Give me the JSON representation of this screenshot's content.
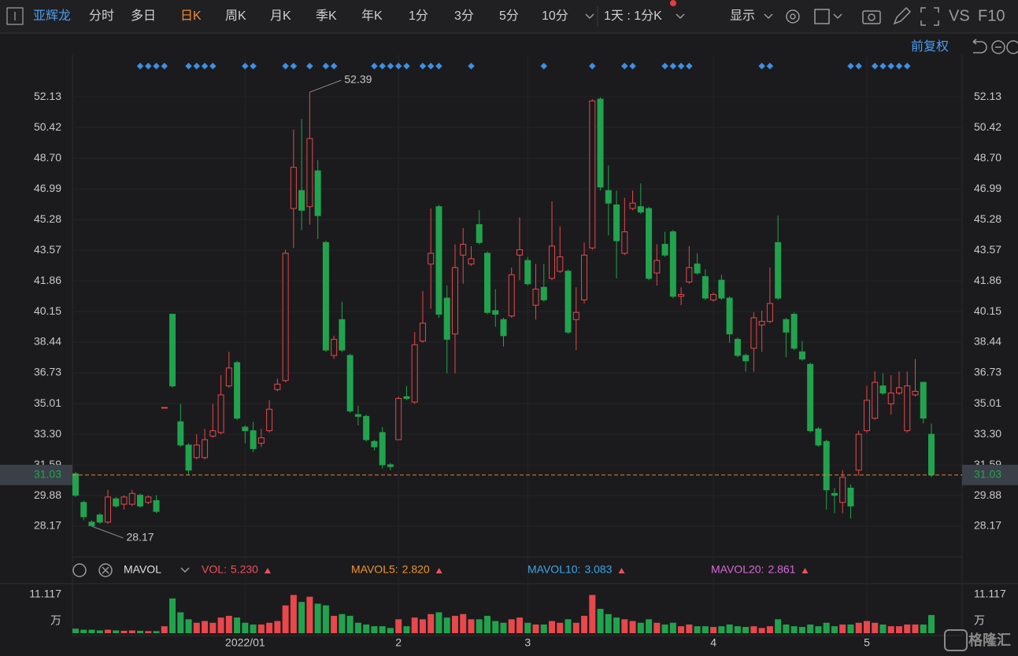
{
  "toolbar": {
    "stock": "亚辉龙",
    "tabs": [
      "分时",
      "多日",
      "日K",
      "周K",
      "月K",
      "季K",
      "年K",
      "1分",
      "3分",
      "5分",
      "10分"
    ],
    "active_tab_index": 2,
    "period": "1天 : 1分K",
    "display": "显示",
    "vs": "VS",
    "f10": "F10",
    "adjust": "前复权"
  },
  "chart_data": {
    "type": "candlestick",
    "categories": [
      null,
      null,
      null,
      null,
      null,
      null,
      null,
      null,
      null,
      null,
      null,
      null,
      null,
      null,
      null,
      null,
      null,
      null,
      null,
      null,
      null,
      "2022/01",
      null,
      null,
      null,
      null,
      null,
      null,
      null,
      null,
      null,
      null,
      null,
      null,
      null,
      null,
      null,
      null,
      null,
      null,
      "2",
      null,
      null,
      null,
      null,
      null,
      null,
      null,
      null,
      null,
      null,
      null,
      null,
      null,
      null,
      null,
      "3",
      null,
      null,
      null,
      null,
      null,
      null,
      null,
      null,
      null,
      null,
      null,
      null,
      null,
      null,
      null,
      null,
      null,
      null,
      null,
      null,
      null,
      null,
      "4",
      null,
      null,
      null,
      null,
      null,
      null,
      null,
      null,
      null,
      null,
      null,
      null,
      null,
      null,
      null,
      null,
      null,
      null,
      "5",
      null,
      null,
      null,
      null,
      null,
      null,
      null,
      null
    ],
    "open": [
      31.1,
      29.5,
      28.4,
      28.8,
      28.4,
      29.7,
      29.4,
      29.4,
      29.9,
      29.5,
      29.6,
      34.8,
      40.0,
      34.0,
      32.7,
      32.0,
      32.0,
      33.2,
      33.4,
      36.0,
      37.3,
      33.7,
      33.5,
      32.8,
      33.5,
      35.8,
      36.3,
      45.9,
      46.9,
      46.0,
      48.0,
      44.0,
      37.7,
      39.7,
      37.7,
      34.4,
      34.3,
      32.9,
      33.4,
      31.6,
      33.0,
      35.4,
      35.1,
      38.5,
      42.8,
      46.0,
      40.9,
      38.9,
      43.3,
      42.8,
      45.0,
      43.4,
      40.2,
      39.7,
      39.9,
      43.3,
      43.0,
      40.5,
      41.5,
      42.0,
      42.4,
      42.4,
      39.7,
      40.8,
      43.7,
      52.0,
      46.9,
      46.1,
      43.4,
      45.9,
      46.0,
      45.9,
      42.3,
      43.9,
      44.6,
      41.0,
      41.8,
      42.8,
      42.1,
      40.8,
      41.9,
      40.9,
      38.6,
      37.7,
      38.1,
      39.4,
      39.6,
      44.0,
      39.7,
      40.0,
      37.9,
      37.2,
      33.6,
      32.9,
      30.0,
      29.5,
      30.3,
      31.3,
      33.5,
      34.2,
      36.0,
      35.0,
      35.6,
      33.5,
      35.5,
      36.2,
      33.3
    ],
    "high": [
      31.2,
      29.6,
      28.5,
      28.9,
      30.2,
      29.8,
      29.9,
      30.2,
      30.0,
      29.9,
      29.9,
      34.8,
      40.0,
      35.0,
      32.8,
      33.3,
      33.6,
      35.0,
      36.6,
      37.9,
      37.4,
      33.8,
      34.0,
      33.6,
      35.2,
      36.4,
      43.6,
      50.3,
      50.9,
      52.39,
      48.6,
      44.1,
      38.8,
      40.7,
      37.8,
      34.9,
      34.4,
      33.0,
      33.7,
      31.7,
      35.4,
      36.0,
      39.0,
      41.3,
      45.9,
      46.1,
      41.6,
      43.9,
      44.8,
      43.8,
      45.8,
      43.5,
      41.4,
      39.8,
      42.6,
      45.4,
      43.2,
      42.8,
      42.8,
      46.3,
      44.9,
      42.5,
      41.5,
      44.0,
      52.0,
      52.1,
      48.3,
      46.9,
      46.5,
      46.9,
      47.3,
      46.0,
      43.9,
      44.6,
      44.7,
      41.5,
      43.8,
      43.4,
      42.5,
      41.2,
      42.2,
      41.0,
      38.7,
      37.8,
      40.1,
      40.2,
      42.6,
      45.5,
      39.8,
      40.1,
      38.5,
      37.3,
      33.7,
      33.0,
      30.3,
      31.3,
      30.5,
      33.5,
      36.0,
      36.8,
      36.7,
      36.6,
      36.8,
      36.8,
      37.5,
      36.2,
      33.9
    ],
    "low": [
      29.8,
      28.5,
      28.17,
      28.3,
      28.3,
      29.2,
      29.1,
      29.3,
      29.2,
      29.4,
      28.9,
      34.8,
      35.9,
      32.6,
      31.0,
      31.9,
      31.9,
      33.1,
      33.3,
      35.9,
      34.1,
      32.8,
      32.3,
      32.6,
      33.4,
      35.7,
      36.2,
      43.7,
      44.7,
      45.0,
      44.2,
      37.9,
      37.5,
      37.9,
      34.5,
      33.8,
      32.9,
      32.4,
      31.4,
      31.3,
      33.0,
      35.2,
      35.0,
      38.4,
      40.3,
      39.8,
      36.7,
      36.7,
      41.7,
      42.7,
      43.9,
      40.0,
      39.3,
      38.2,
      39.8,
      41.9,
      41.6,
      39.7,
      40.7,
      41.9,
      42.3,
      38.9,
      38.0,
      40.6,
      43.6,
      46.9,
      44.4,
      42.0,
      43.3,
      45.8,
      45.6,
      41.9,
      41.6,
      43.2,
      40.9,
      40.5,
      41.7,
      42.2,
      40.8,
      40.7,
      40.8,
      38.4,
      37.6,
      36.8,
      36.8,
      37.9,
      39.5,
      40.8,
      37.6,
      38.0,
      37.4,
      33.4,
      32.6,
      29.1,
      28.9,
      28.9,
      28.6,
      31.0,
      33.4,
      34.1,
      35.5,
      34.4,
      35.5,
      33.4,
      35.4,
      33.9,
      30.9
    ],
    "close": [
      29.9,
      28.7,
      28.2,
      28.4,
      29.8,
      29.3,
      29.8,
      30.0,
      29.3,
      29.8,
      29.0,
      34.8,
      36.0,
      32.7,
      31.3,
      32.7,
      33.0,
      33.5,
      35.5,
      37.0,
      34.2,
      33.5,
      32.5,
      33.1,
      34.7,
      36.1,
      43.4,
      48.2,
      45.8,
      49.8,
      45.5,
      38.0,
      38.6,
      38.0,
      34.6,
      34.3,
      33.0,
      32.6,
      31.6,
      31.5,
      35.3,
      35.3,
      38.3,
      39.5,
      43.4,
      40.0,
      38.6,
      42.6,
      43.9,
      43.1,
      44.0,
      40.1,
      40.0,
      38.8,
      42.2,
      43.6,
      41.7,
      41.4,
      40.8,
      43.8,
      43.2,
      39.0,
      40.1,
      43.3,
      51.9,
      47.1,
      46.2,
      44.1,
      44.6,
      46.2,
      45.7,
      42.0,
      43.0,
      43.3,
      41.0,
      41.1,
      42.6,
      42.3,
      40.9,
      41.1,
      40.9,
      38.9,
      37.7,
      37.4,
      39.8,
      39.6,
      40.6,
      40.9,
      39.0,
      38.1,
      37.5,
      33.5,
      32.7,
      30.2,
      29.9,
      30.9,
      29.3,
      33.3,
      35.2,
      36.2,
      35.6,
      35.6,
      35.9,
      36.0,
      35.7,
      34.2,
      31.03
    ],
    "up_color": "#e8474c",
    "down_color": "#21a34e",
    "ylim": [
      26.46,
      54.46
    ],
    "yticks": [
      28.17,
      29.88,
      31.59,
      {
        "value": 33.3,
        "label": "33.30"
      },
      35.01,
      36.73,
      38.44,
      40.15,
      41.86,
      43.57,
      45.28,
      46.99,
      {
        "value": 48.7,
        "label": "48.70"
      },
      50.42,
      52.13
    ],
    "grid": true,
    "last_price": 31.03,
    "high_label": "52.39",
    "low_label": "28.17",
    "signals": [
      8,
      9,
      10,
      11,
      14,
      15,
      16,
      17,
      21,
      22,
      26,
      27,
      29,
      31,
      32,
      37,
      38,
      39,
      40,
      41,
      43,
      44,
      45,
      49,
      58,
      64,
      68,
      69,
      73,
      74,
      75,
      76,
      85,
      86,
      96,
      97,
      99,
      100,
      101,
      102,
      103
    ],
    "signal_color": "#3d8fe6",
    "volume": {
      "indicator": "MAVOL",
      "values": [
        1.3,
        1.0,
        1.0,
        0.8,
        1.0,
        0.8,
        0.7,
        0.8,
        0.7,
        0.6,
        0.6,
        2.0,
        10.0,
        6.0,
        4.0,
        3.0,
        3.5,
        3.0,
        4.5,
        5.0,
        4.5,
        3.0,
        2.5,
        2.5,
        3.0,
        3.5,
        8.0,
        11.0,
        9.0,
        10.5,
        8.5,
        8.0,
        5.0,
        5.5,
        5.0,
        3.0,
        2.5,
        2.0,
        2.0,
        1.5,
        4.0,
        2.0,
        4.5,
        4.0,
        5.5,
        6.0,
        4.5,
        5.0,
        5.5,
        4.0,
        4.0,
        5.0,
        3.5,
        3.0,
        4.0,
        4.5,
        3.0,
        2.5,
        2.5,
        3.5,
        3.0,
        4.0,
        3.0,
        5.0,
        11.0,
        7.0,
        5.5,
        4.5,
        4.0,
        3.5,
        3.0,
        4.0,
        3.0,
        2.5,
        3.0,
        2.0,
        2.5,
        2.0,
        2.0,
        1.8,
        2.0,
        2.5,
        2.0,
        1.8,
        2.0,
        1.5,
        2.0,
        4.0,
        2.5,
        2.0,
        1.8,
        2.5,
        2.0,
        3.0,
        2.0,
        2.5,
        2.5,
        3.0,
        3.5,
        3.0,
        2.5,
        2.0,
        2.0,
        2.5,
        2.5,
        2.5,
        5.23
      ],
      "ylim": [
        0,
        12
      ],
      "yticks": [
        11.117
      ],
      "unit": "万",
      "indicators": [
        {
          "name": "VOL:",
          "value": "5.230",
          "color": "#f0505a"
        },
        {
          "name": "MAVOL5:",
          "value": "2.820",
          "color": "#f0952e"
        },
        {
          "name": "MAVOL10:",
          "value": "3.083",
          "color": "#3aa6e8"
        },
        {
          "name": "MAVOL20:",
          "value": "2.861",
          "color": "#d768d8"
        }
      ]
    }
  },
  "watermark": "格隆汇"
}
